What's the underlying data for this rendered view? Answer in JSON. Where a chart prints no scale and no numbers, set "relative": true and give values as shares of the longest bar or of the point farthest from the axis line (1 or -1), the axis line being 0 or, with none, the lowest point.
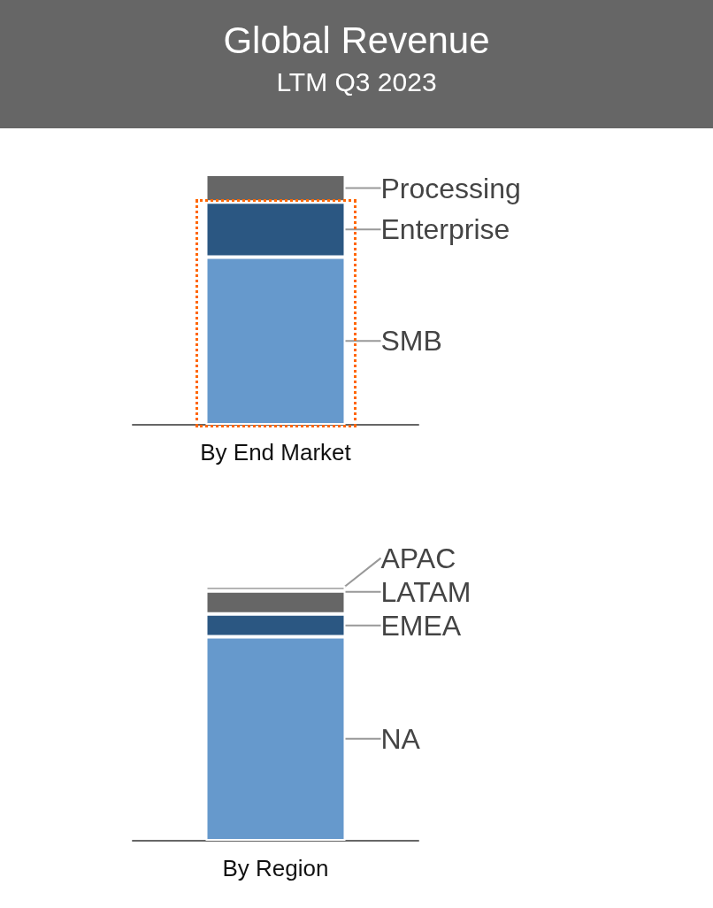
{
  "chart_data": [
    {
      "type": "bar",
      "title": "Global Revenue",
      "subtitle": "LTM Q3 2023",
      "relative": true,
      "stacked": true,
      "categories": [
        "By End Market"
      ],
      "series": [
        {
          "name": "SMB",
          "color": "#6699cc",
          "values": [
            0.67
          ]
        },
        {
          "name": "Enterprise",
          "color": "#2b5782",
          "values": [
            0.22
          ]
        },
        {
          "name": "Processing",
          "color": "#666666",
          "values": [
            0.11
          ]
        }
      ]
    },
    {
      "type": "bar",
      "relative": true,
      "stacked": true,
      "categories": [
        "By Region"
      ],
      "series": [
        {
          "name": "NA",
          "color": "#6699cc",
          "values": [
            0.8
          ]
        },
        {
          "name": "EMEA",
          "color": "#2b5782",
          "values": [
            0.09
          ]
        },
        {
          "name": "LATAM",
          "color": "#666666",
          "values": [
            0.09
          ]
        },
        {
          "name": "APAC",
          "color": "#aaaaaa",
          "values": [
            0.02
          ]
        }
      ]
    }
  ]
}
